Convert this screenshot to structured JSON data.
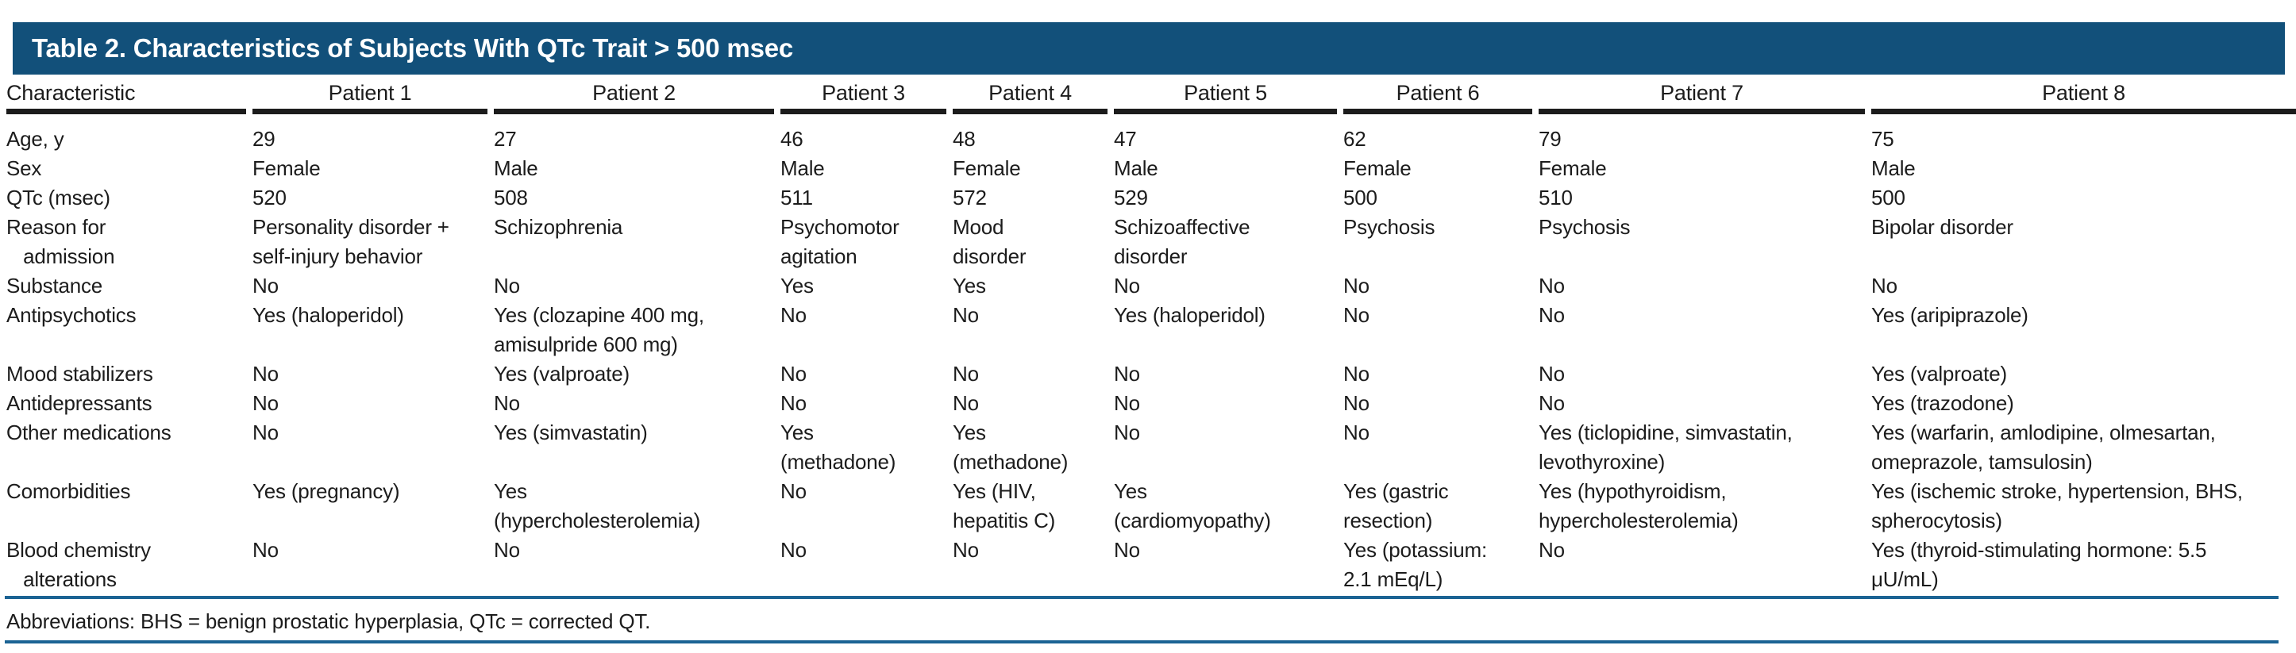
{
  "title": "Table 2. Characteristics of Subjects With QTc Trait > 500 msec",
  "columns": [
    "Characteristic",
    "Patient 1",
    "Patient 2",
    "Patient 3",
    "Patient 4",
    "Patient 5",
    "Patient 6",
    "Patient 7",
    "Patient 8"
  ],
  "rows": [
    {
      "label": "Age, y",
      "values": [
        "29",
        "27",
        "46",
        "48",
        "47",
        "62",
        "79",
        "75"
      ]
    },
    {
      "label": "Sex",
      "values": [
        "Female",
        "Male",
        "Male",
        "Female",
        "Male",
        "Female",
        "Female",
        "Male"
      ]
    },
    {
      "label": "QTc (msec)",
      "values": [
        "520",
        "508",
        "511",
        "572",
        "529",
        "500",
        "510",
        "500"
      ]
    },
    {
      "label": "Reason for\n   admission",
      "values": [
        "Personality disorder +\nself-injury behavior",
        "Schizophrenia",
        "Psychomotor\nagitation",
        "Mood\ndisorder",
        "Schizoaffective\ndisorder",
        "Psychosis",
        "Psychosis",
        "Bipolar disorder"
      ]
    },
    {
      "label": "Substance",
      "values": [
        "No",
        "No",
        "Yes",
        "Yes",
        "No",
        "No",
        "No",
        "No"
      ]
    },
    {
      "label": "Antipsychotics",
      "values": [
        "Yes (haloperidol)",
        "Yes (clozapine 400 mg,\namisulpride 600 mg)",
        "No",
        "No",
        "Yes (haloperidol)",
        "No",
        "No",
        "Yes (aripiprazole)"
      ]
    },
    {
      "label": "Mood stabilizers",
      "values": [
        "No",
        "Yes (valproate)",
        "No",
        "No",
        "No",
        "No",
        "No",
        "Yes (valproate)"
      ]
    },
    {
      "label": "Antidepressants",
      "values": [
        "No",
        "No",
        "No",
        "No",
        "No",
        "No",
        "No",
        "Yes (trazodone)"
      ]
    },
    {
      "label": "Other medications",
      "values": [
        "No",
        "Yes (simvastatin)",
        "Yes\n(methadone)",
        "Yes\n(methadone)",
        "No",
        "No",
        "Yes (ticlopidine, simvastatin,\nlevothyroxine)",
        "Yes (warfarin, amlodipine, olmesartan,\nomeprazole, tamsulosin)"
      ]
    },
    {
      "label": "Comorbidities",
      "values": [
        "Yes (pregnancy)",
        "Yes\n(hypercholesterolemia)",
        "No",
        "Yes (HIV,\nhepatitis C)",
        "Yes\n(cardiomyopathy)",
        "Yes (gastric\nresection)",
        "Yes (hypothyroidism,\nhypercholesterolemia)",
        "Yes (ischemic stroke, hypertension, BHS,\nspherocytosis)"
      ]
    },
    {
      "label": "Blood chemistry\n   alterations",
      "values": [
        "No",
        "No",
        "No",
        "No",
        "No",
        "Yes (potassium:\n2.1 mEq/L)",
        "No",
        "Yes (thyroid-stimulating hormone: 5.5\nμU/mL)"
      ]
    }
  ],
  "footnote": "Abbreviations: BHS = benign prostatic hyperplasia, QTc = corrected QT.",
  "colors": {
    "header_bar": "#12507a",
    "rule_blue": "#1b6394",
    "header_rule_black": "#1c1c1c"
  }
}
